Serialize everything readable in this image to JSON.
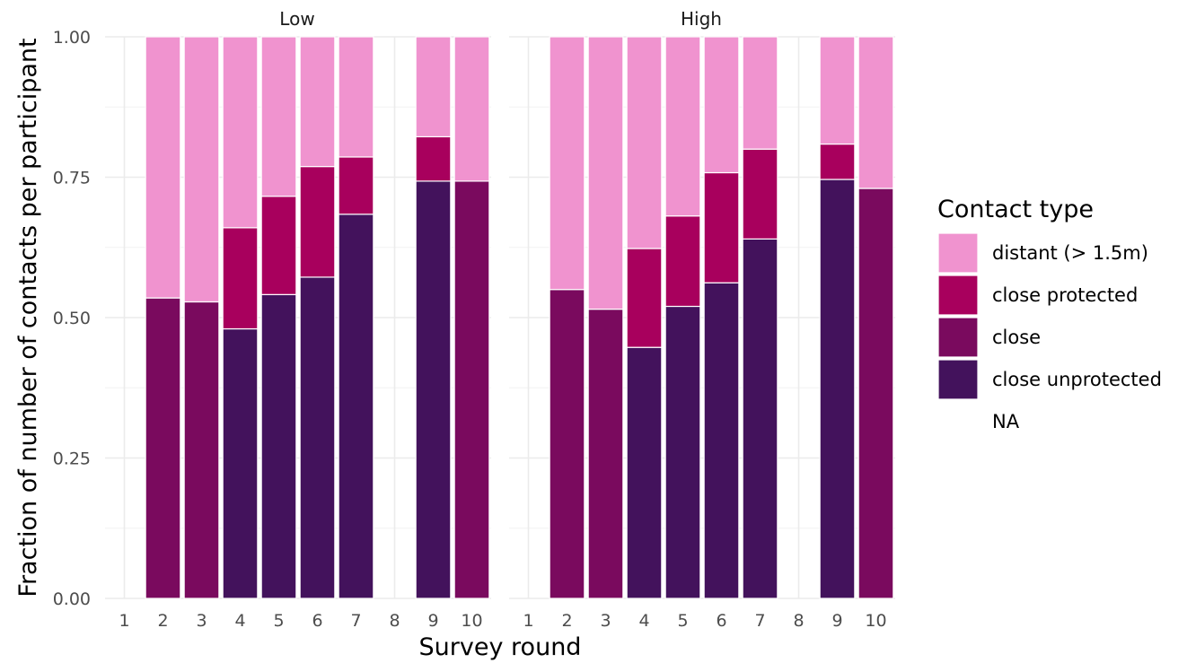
{
  "chart_data": {
    "type": "bar",
    "stacked": true,
    "xlabel": "Survey round",
    "ylabel": "Fraction of number of contacts per participant",
    "ylim": [
      0,
      1
    ],
    "yticks": [
      "0.00",
      "0.25",
      "0.50",
      "0.75",
      "1.00"
    ],
    "ytick_values": [
      0,
      0.25,
      0.5,
      0.75,
      1
    ],
    "categories": [
      "1",
      "2",
      "3",
      "4",
      "5",
      "6",
      "7",
      "8",
      "9",
      "10"
    ],
    "grid": true,
    "legend": {
      "title": "Contact type",
      "position": "right",
      "entries": [
        {
          "label": "distant (> 1.5m)",
          "color": "#f093cf"
        },
        {
          "label": "close protected",
          "color": "#a8005d"
        },
        {
          "label": "close",
          "color": "#7a0a5e"
        },
        {
          "label": "close unprotected",
          "color": "#43125c"
        },
        {
          "label": "NA",
          "color": ""
        }
      ]
    },
    "panels": [
      {
        "title": "Low",
        "bars": [
          {
            "x": "2",
            "segments": [
              {
                "type": "close",
                "from": 0,
                "to": 0.535
              },
              {
                "type": "distant (> 1.5m)",
                "from": 0.535,
                "to": 1
              }
            ]
          },
          {
            "x": "3",
            "segments": [
              {
                "type": "close",
                "from": 0,
                "to": 0.528
              },
              {
                "type": "distant (> 1.5m)",
                "from": 0.528,
                "to": 1
              }
            ]
          },
          {
            "x": "4",
            "segments": [
              {
                "type": "close unprotected",
                "from": 0,
                "to": 0.48
              },
              {
                "type": "close protected",
                "from": 0.48,
                "to": 0.66
              },
              {
                "type": "distant (> 1.5m)",
                "from": 0.66,
                "to": 1
              }
            ]
          },
          {
            "x": "5",
            "segments": [
              {
                "type": "close unprotected",
                "from": 0,
                "to": 0.541
              },
              {
                "type": "close protected",
                "from": 0.541,
                "to": 0.716
              },
              {
                "type": "distant (> 1.5m)",
                "from": 0.716,
                "to": 1
              }
            ]
          },
          {
            "x": "6",
            "segments": [
              {
                "type": "close unprotected",
                "from": 0,
                "to": 0.572
              },
              {
                "type": "close protected",
                "from": 0.572,
                "to": 0.769
              },
              {
                "type": "distant (> 1.5m)",
                "from": 0.769,
                "to": 1
              }
            ]
          },
          {
            "x": "7",
            "segments": [
              {
                "type": "close unprotected",
                "from": 0,
                "to": 0.684
              },
              {
                "type": "close protected",
                "from": 0.684,
                "to": 0.786
              },
              {
                "type": "distant (> 1.5m)",
                "from": 0.786,
                "to": 1
              }
            ]
          },
          {
            "x": "9",
            "segments": [
              {
                "type": "close unprotected",
                "from": 0,
                "to": 0.743
              },
              {
                "type": "close protected",
                "from": 0.743,
                "to": 0.822
              },
              {
                "type": "distant (> 1.5m)",
                "from": 0.822,
                "to": 1
              }
            ]
          },
          {
            "x": "10",
            "segments": [
              {
                "type": "close",
                "from": 0,
                "to": 0.743
              },
              {
                "type": "distant (> 1.5m)",
                "from": 0.743,
                "to": 1
              }
            ]
          }
        ]
      },
      {
        "title": "High",
        "bars": [
          {
            "x": "2",
            "segments": [
              {
                "type": "close",
                "from": 0,
                "to": 0.55
              },
              {
                "type": "distant (> 1.5m)",
                "from": 0.55,
                "to": 1
              }
            ]
          },
          {
            "x": "3",
            "segments": [
              {
                "type": "close",
                "from": 0,
                "to": 0.515
              },
              {
                "type": "distant (> 1.5m)",
                "from": 0.515,
                "to": 1
              }
            ]
          },
          {
            "x": "4",
            "segments": [
              {
                "type": "close unprotected",
                "from": 0,
                "to": 0.447
              },
              {
                "type": "close protected",
                "from": 0.447,
                "to": 0.623
              },
              {
                "type": "distant (> 1.5m)",
                "from": 0.623,
                "to": 1
              }
            ]
          },
          {
            "x": "5",
            "segments": [
              {
                "type": "close unprotected",
                "from": 0,
                "to": 0.52
              },
              {
                "type": "close protected",
                "from": 0.52,
                "to": 0.681
              },
              {
                "type": "distant (> 1.5m)",
                "from": 0.681,
                "to": 1
              }
            ]
          },
          {
            "x": "6",
            "segments": [
              {
                "type": "close unprotected",
                "from": 0,
                "to": 0.562
              },
              {
                "type": "close protected",
                "from": 0.562,
                "to": 0.758
              },
              {
                "type": "distant (> 1.5m)",
                "from": 0.758,
                "to": 1
              }
            ]
          },
          {
            "x": "7",
            "segments": [
              {
                "type": "close unprotected",
                "from": 0,
                "to": 0.64
              },
              {
                "type": "close protected",
                "from": 0.64,
                "to": 0.8
              },
              {
                "type": "distant (> 1.5m)",
                "from": 0.8,
                "to": 1
              }
            ]
          },
          {
            "x": "9",
            "segments": [
              {
                "type": "close unprotected",
                "from": 0,
                "to": 0.746
              },
              {
                "type": "close protected",
                "from": 0.746,
                "to": 0.809
              },
              {
                "type": "distant (> 1.5m)",
                "from": 0.809,
                "to": 1
              }
            ]
          },
          {
            "x": "10",
            "segments": [
              {
                "type": "close",
                "from": 0,
                "to": 0.73
              },
              {
                "type": "distant (> 1.5m)",
                "from": 0.73,
                "to": 1
              }
            ]
          }
        ]
      }
    ]
  }
}
